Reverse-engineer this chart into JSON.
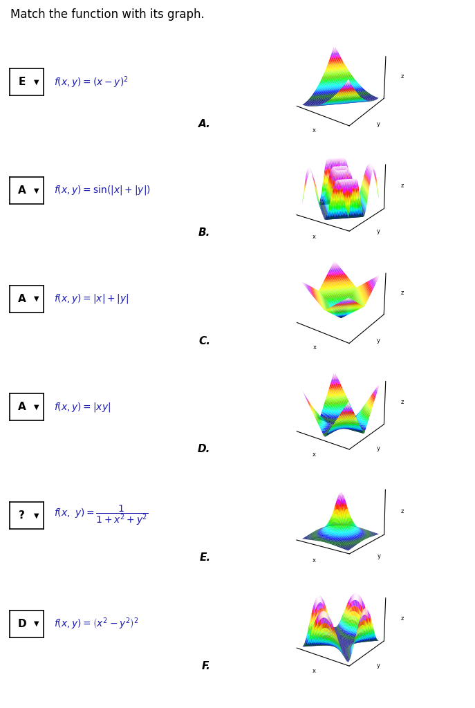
{
  "title": "Match the function with its graph.",
  "rows": [
    {
      "label": "E",
      "func_type": "x_minus_y_sq",
      "graph_letter": "A.",
      "elev": 28,
      "azim": -55,
      "xrange": [
        -3,
        3
      ],
      "yrange": [
        -3,
        3
      ],
      "npts": 40
    },
    {
      "label": "A",
      "func_type": "sin_abs",
      "graph_letter": "B.",
      "elev": 22,
      "azim": -55,
      "xrange": [
        -5,
        5
      ],
      "yrange": [
        -5,
        5
      ],
      "npts": 50
    },
    {
      "label": "A",
      "func_type": "abs_sum",
      "graph_letter": "C.",
      "elev": 30,
      "azim": -55,
      "xrange": [
        -3,
        3
      ],
      "yrange": [
        -3,
        3
      ],
      "npts": 40
    },
    {
      "label": "A",
      "func_type": "abs_xy",
      "graph_letter": "D.",
      "elev": 25,
      "azim": -55,
      "xrange": [
        -3,
        3
      ],
      "yrange": [
        -3,
        3
      ],
      "npts": 40
    },
    {
      "label": "?",
      "func_type": "fraction",
      "graph_letter": "E.",
      "elev": 18,
      "azim": -55,
      "xrange": [
        -3,
        3
      ],
      "yrange": [
        -3,
        3
      ],
      "npts": 40
    },
    {
      "label": "D",
      "func_type": "x2_minus_y2_sq",
      "graph_letter": "F.",
      "elev": 25,
      "azim": -55,
      "xrange": [
        -2,
        2
      ],
      "yrange": [
        -2,
        2
      ],
      "npts": 50
    }
  ],
  "background_color": "#ffffff",
  "text_color": "#000000",
  "func_color": "#1a1ab0",
  "label_color": "#000000",
  "cmap": "gist_ncar"
}
